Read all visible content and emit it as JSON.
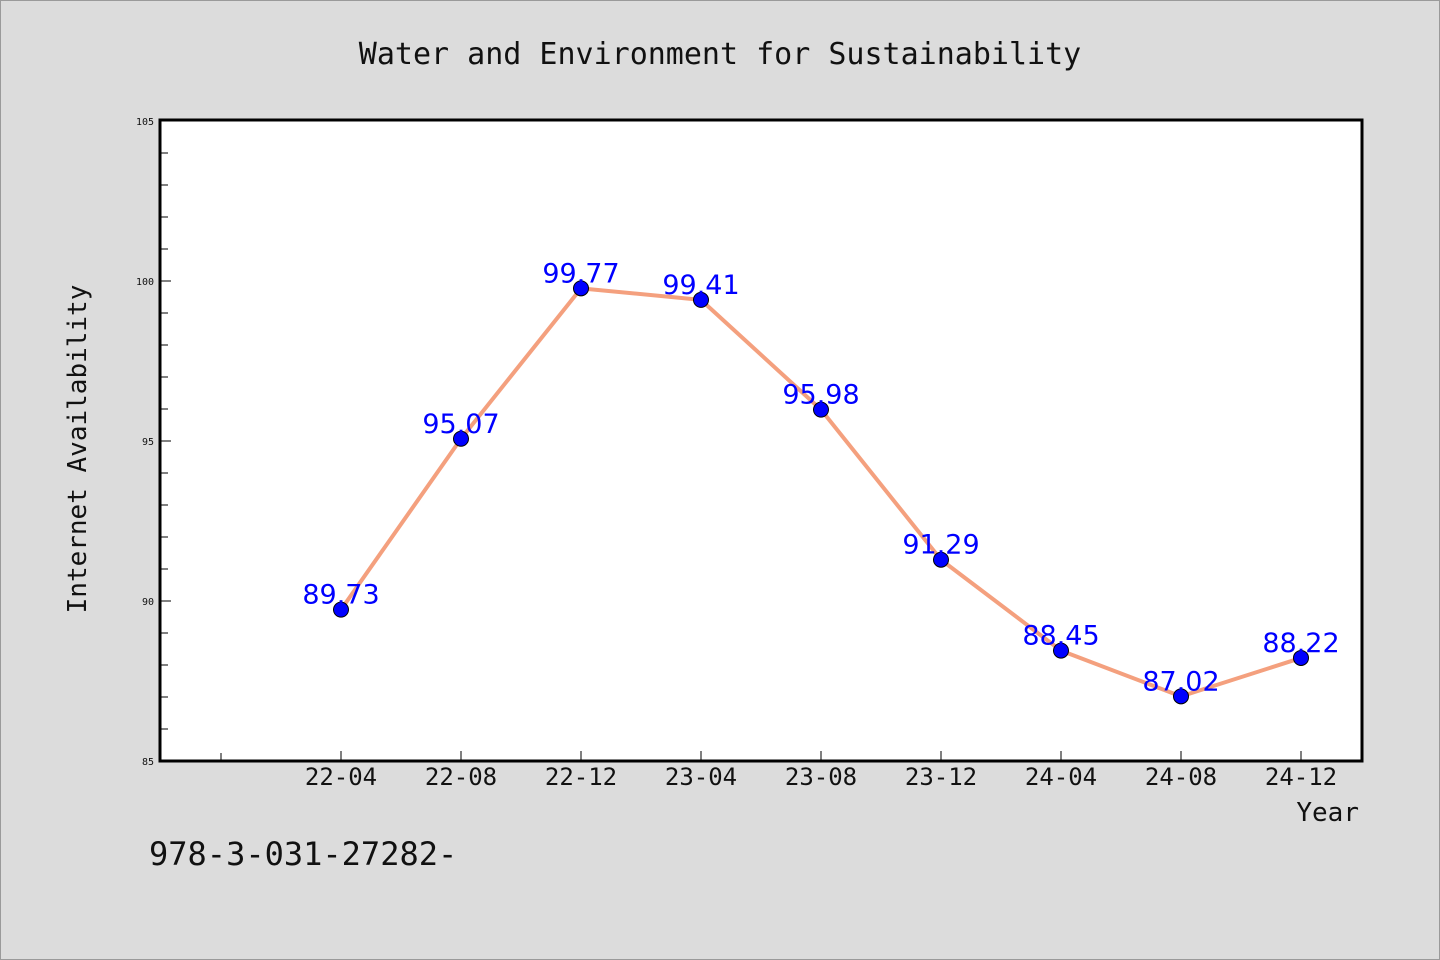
{
  "chart_data": {
    "type": "line",
    "title": "Water and Environment for Sustainability",
    "xlabel": "Year",
    "ylabel": "Internet Availability",
    "categories": [
      "22-04",
      "22-08",
      "22-12",
      "23-04",
      "23-08",
      "23-12",
      "24-04",
      "24-08",
      "24-12"
    ],
    "series": [
      {
        "values": [
          89.73,
          95.07,
          99.77,
          99.41,
          95.98,
          91.29,
          88.45,
          87.02,
          88.22
        ]
      }
    ],
    "data_labels": [
      "89.73",
      "95.07",
      "99.77",
      "99.41",
      "95.98",
      "91.29",
      "88.45",
      "87.02",
      "88.22"
    ],
    "ylim": [
      85,
      105
    ],
    "yticks": [
      "85",
      "90",
      "95",
      "100",
      "105"
    ],
    "grid": false,
    "legend": "none",
    "colors": {
      "line": "#f4a07e",
      "marker": "#0000ff",
      "label": "#0000ff",
      "background": "#dcdcdc",
      "plot_area": "#ffffff"
    }
  },
  "footer": {
    "text": "978-3-031-27282-"
  }
}
